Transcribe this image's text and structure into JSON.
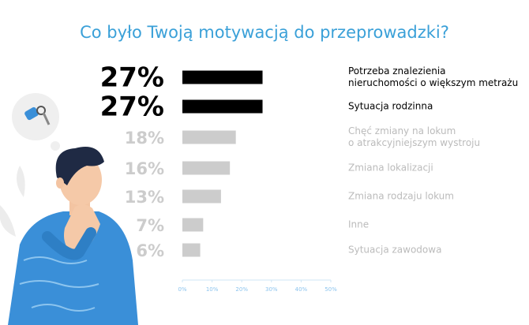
{
  "chart_data": {
    "type": "bar",
    "orientation": "horizontal",
    "title": "Co było Twoją motywacją do przeprowadzki?",
    "categories": [
      "Potrzeba znalezienia\nnieruchomości o większym metrażu",
      "Sytuacja rodzinna",
      "Chęć zmiany na lokum\no atrakcyjniejszym wystroju",
      "Zmiana lokalizacji",
      "Zmiana rodzaju lokum",
      "Inne",
      "Sytuacja zawodowa"
    ],
    "values": [
      27,
      27,
      18,
      16,
      13,
      7,
      6
    ],
    "value_labels": [
      "27%",
      "27%",
      "18%",
      "16%",
      "13%",
      "7%",
      "6%"
    ],
    "colors": [
      "#000000",
      "#000000",
      "#cccccc",
      "#cccccc",
      "#cccccc",
      "#cccccc",
      "#cccccc"
    ],
    "xlim": [
      0,
      50
    ],
    "xticks": [
      {
        "value": 0,
        "label": "0%"
      },
      {
        "value": 10,
        "label": "10%"
      },
      {
        "value": 20,
        "label": "20%"
      },
      {
        "value": 30,
        "label": "30%"
      },
      {
        "value": 40,
        "label": "40%"
      },
      {
        "value": 50,
        "label": "50%"
      }
    ]
  }
}
